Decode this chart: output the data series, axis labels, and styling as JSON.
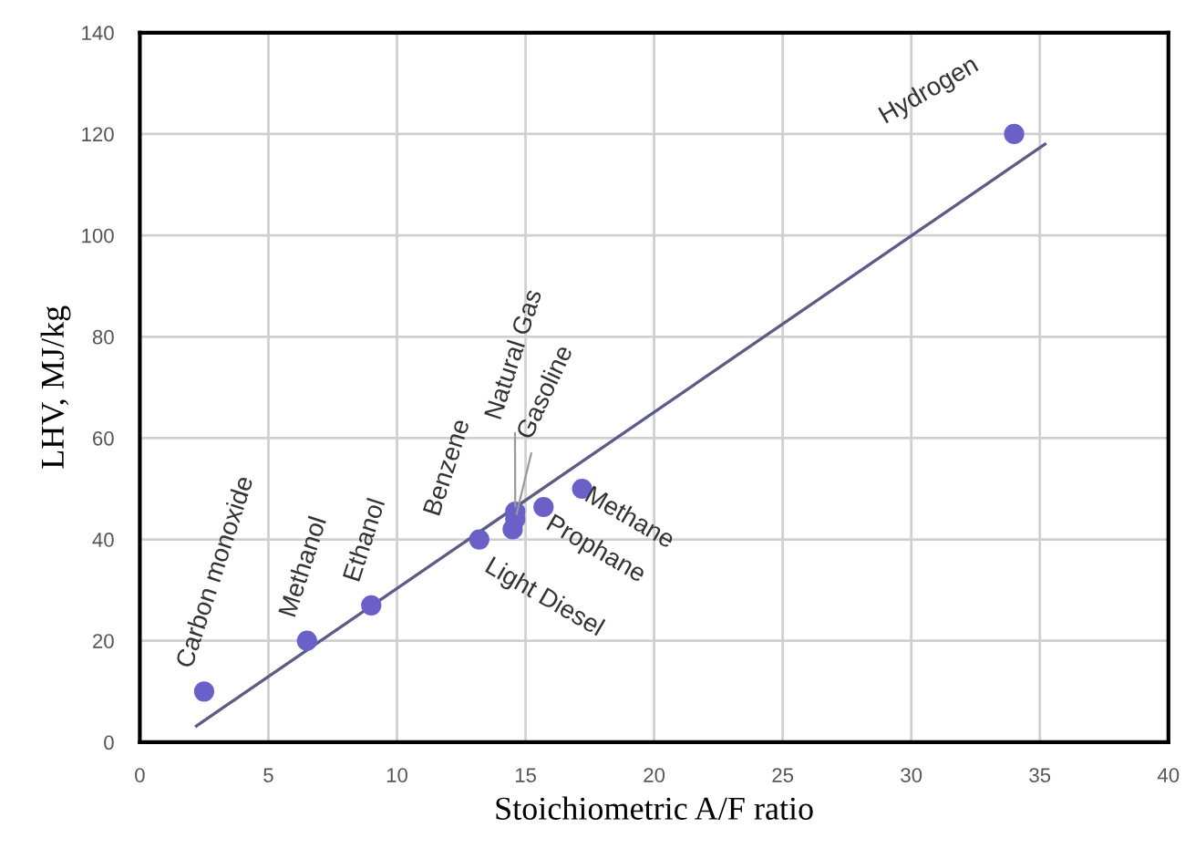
{
  "chart_data": {
    "type": "scatter",
    "xlabel": "Stoichiometric A/F ratio",
    "ylabel": "LHV, MJ/kg",
    "xlim": [
      0,
      40
    ],
    "ylim": [
      0,
      140
    ],
    "xticks": [
      0,
      5,
      10,
      15,
      20,
      25,
      30,
      35,
      40
    ],
    "yticks": [
      0,
      20,
      40,
      60,
      80,
      100,
      120,
      140
    ],
    "grid": true,
    "series": [
      {
        "marker": "circle",
        "color": "#6a60c8",
        "x": [
          2.5,
          6.5,
          9.0,
          13.2,
          14.6,
          14.6,
          14.5,
          15.7,
          17.2,
          34.0
        ],
        "values": [
          10,
          20,
          27,
          40,
          45.5,
          44,
          42,
          46.4,
          50,
          120
        ]
      },
      {
        "type": "line",
        "color": "#5c5c88",
        "x": [
          2.2,
          35.2
        ],
        "values": [
          3.2,
          118
        ]
      }
    ],
    "annotations": [
      {
        "text": "Carbon monoxide",
        "x": 2.5,
        "y": 10
      },
      {
        "text": "Methanol",
        "x": 6.5,
        "y": 20
      },
      {
        "text": "Ethanol",
        "x": 9.0,
        "y": 27
      },
      {
        "text": "Benzene",
        "x": 13.2,
        "y": 40
      },
      {
        "text": "Natural Gas",
        "x": 14.6,
        "y": 45.5
      },
      {
        "text": "Gasoline",
        "x": 14.6,
        "y": 44
      },
      {
        "text": "Light Diesel",
        "x": 14.5,
        "y": 42
      },
      {
        "text": "Prophane",
        "x": 15.7,
        "y": 46.4
      },
      {
        "text": "Methane",
        "x": 17.2,
        "y": 50
      },
      {
        "text": "Hydrogen",
        "x": 34.0,
        "y": 120
      }
    ]
  }
}
